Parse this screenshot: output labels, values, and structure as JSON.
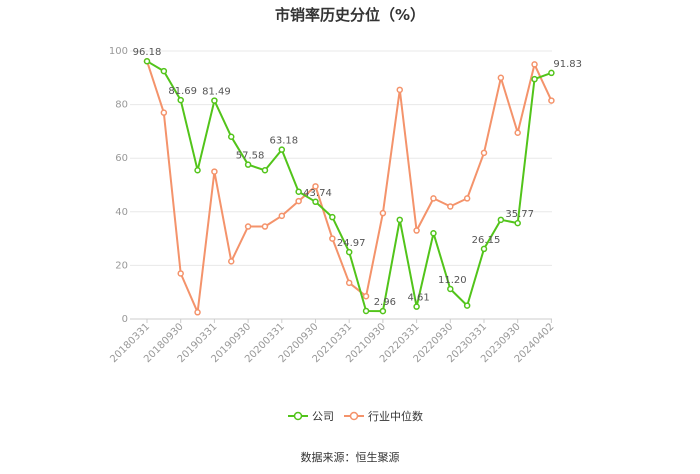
{
  "chart_data": {
    "type": "line",
    "title": "市销率历史分位（%）",
    "x_tick_labels": [
      "20180331",
      "20180930",
      "20190331",
      "20190930",
      "20200331",
      "20200930",
      "20210331",
      "20210930",
      "20220331",
      "20220930",
      "20230331",
      "20230930",
      "20240402"
    ],
    "y_ticks": [
      0,
      20,
      40,
      60,
      80,
      100
    ],
    "ylim": [
      0,
      100
    ],
    "grid": true,
    "legend_position": "bottom",
    "series": [
      {
        "name": "公司",
        "color": "#52c41a",
        "values": [
          96.18,
          92.5,
          81.69,
          55.5,
          81.49,
          68,
          57.58,
          55.5,
          63.18,
          47.5,
          43.74,
          38,
          24.97,
          3,
          2.96,
          37,
          4.61,
          32,
          11.2,
          5,
          26.15,
          37,
          35.77,
          89.5,
          91.83
        ],
        "labels": {
          "0": "96.18",
          "2": "81.69",
          "4": "81.49",
          "6": "57.58",
          "8": "63.18",
          "10": "43.74",
          "12": "24.97",
          "14": "2.96",
          "16": "4.61",
          "18": "11.20",
          "20": "26.15",
          "22": "35.77",
          "24": "91.83"
        }
      },
      {
        "name": "行业中位数",
        "color": "#f4936b",
        "values": [
          96.18,
          77,
          17,
          2.5,
          55,
          21.5,
          34.5,
          34.5,
          38.5,
          44,
          49.5,
          30,
          13.5,
          8.5,
          39.5,
          85.5,
          33,
          45,
          42,
          45,
          62,
          90,
          69.5,
          95,
          81.5
        ]
      }
    ]
  },
  "source": "数据来源：恒生聚源"
}
